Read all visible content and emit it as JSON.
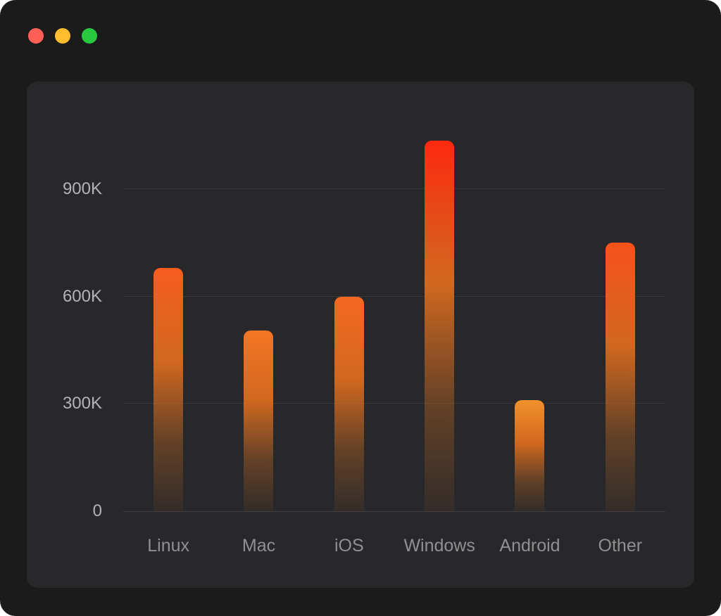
{
  "window": {
    "controls": [
      {
        "id": "close",
        "color": "#ff5f57"
      },
      {
        "id": "minimize",
        "color": "#febc2e"
      },
      {
        "id": "zoom",
        "color": "#28c840"
      }
    ]
  },
  "colors": {
    "page_bg": "#1b1b1b",
    "card_bg": "#28282a",
    "grid": "#39393c",
    "axis": "#3f3f42",
    "tick_text": "#b3b3b5",
    "category_text": "#909092",
    "bar_gradient_low_value_top": "#f0962d",
    "bar_gradient_high_value_top": "#fc2810",
    "bar_gradient_mid": "rgba(224,110,30,0.92)",
    "bar_gradient_fade": "rgba(150,85,35,0.10)"
  },
  "chart_data": {
    "type": "bar",
    "title": "",
    "xlabel": "",
    "ylabel": "",
    "categories": [
      "Linux",
      "Mac",
      "iOS",
      "Windows",
      "Android",
      "Other"
    ],
    "values": [
      680000,
      505000,
      600000,
      1035000,
      310000,
      750000
    ],
    "ylim": [
      0,
      1100000
    ],
    "yticks": [
      {
        "value": 0,
        "label": "0"
      },
      {
        "value": 300000,
        "label": "300K"
      },
      {
        "value": 600000,
        "label": "600K"
      },
      {
        "value": 900000,
        "label": "900K"
      }
    ],
    "grid": true,
    "legend": false,
    "bar_style": "vertical gradient, rounded top, redder for taller bars"
  }
}
